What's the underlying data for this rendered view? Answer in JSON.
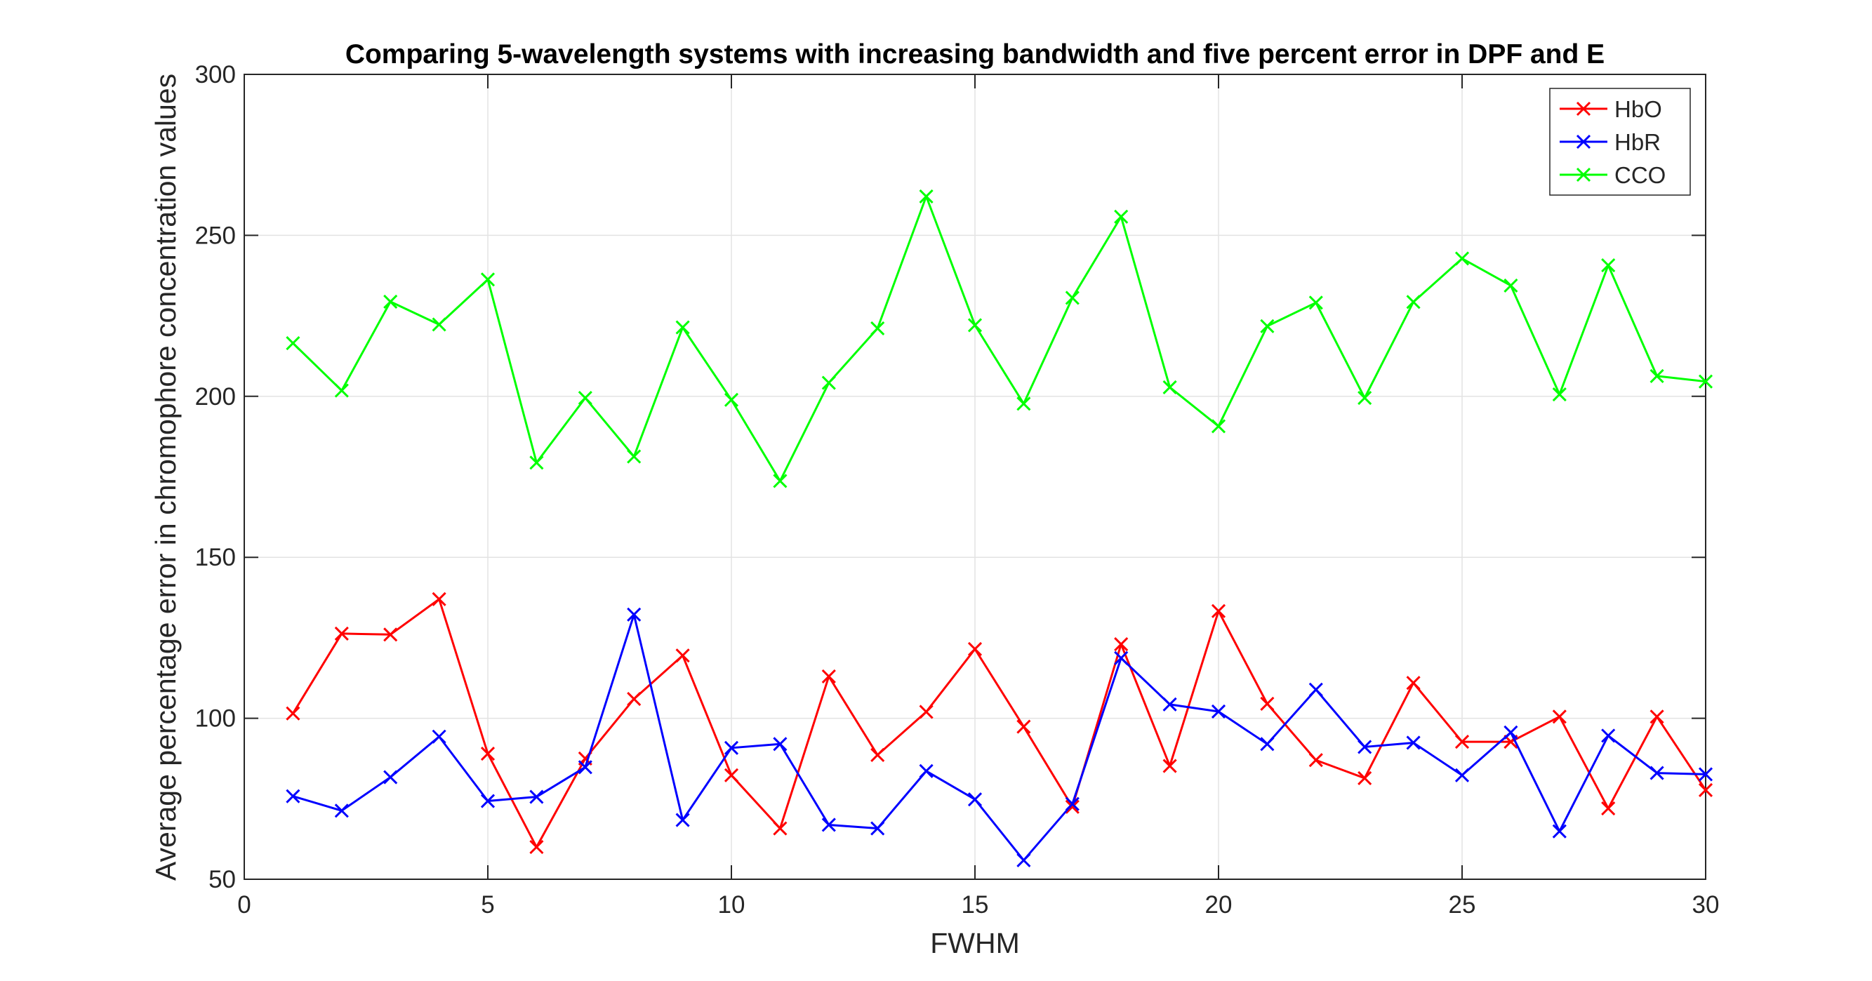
{
  "chart_data": {
    "type": "line",
    "title": "Comparing 5-wavelength systems with increasing bandwidth and five percent error in DPF and E",
    "xlabel": "FWHM",
    "ylabel": "Average percentage error in chromophore concentration values",
    "xlim": [
      0,
      30
    ],
    "ylim": [
      50,
      300
    ],
    "xticks": [
      0,
      5,
      10,
      15,
      20,
      25,
      30
    ],
    "yticks": [
      50,
      100,
      150,
      200,
      250,
      300
    ],
    "grid": true,
    "legend_position": "top-right",
    "marker": "x",
    "x": [
      1,
      2,
      3,
      4,
      5,
      6,
      7,
      8,
      9,
      10,
      11,
      12,
      13,
      14,
      15,
      16,
      17,
      18,
      19,
      20,
      21,
      22,
      23,
      24,
      25,
      26,
      27,
      28,
      29,
      30
    ],
    "series": [
      {
        "name": "HbO",
        "color": "#ff0000",
        "values": [
          101.5,
          126.3,
          126,
          137,
          89,
          60,
          87.5,
          106,
          119.5,
          82.3,
          65.8,
          113,
          88.6,
          102,
          121.5,
          97.4,
          72.5,
          123,
          85.2,
          133.3,
          104.5,
          87,
          81.4,
          111,
          92.7,
          92.7,
          100.5,
          72,
          100.5,
          77.7
        ]
      },
      {
        "name": "HbR",
        "color": "#0000ff",
        "values": [
          75.8,
          71.3,
          81.7,
          94.3,
          74.3,
          75.6,
          84.8,
          132.2,
          68.4,
          90.8,
          92,
          66.9,
          65.8,
          83.6,
          74.8,
          55.9,
          73.4,
          118.7,
          104.3,
          102.1,
          92,
          108.9,
          91.1,
          92.4,
          82.3,
          95.6,
          64.9,
          94.6,
          83,
          82.6
        ]
      },
      {
        "name": "CCO",
        "color": "#00ff00",
        "values": [
          216.5,
          201.8,
          229.4,
          222.3,
          236.3,
          179.4,
          199.5,
          181.3,
          221.4,
          198.9,
          173.7,
          204.2,
          221.1,
          262.1,
          222.1,
          197.7,
          230.6,
          255.8,
          202.8,
          190.7,
          221.8,
          229.1,
          199.5,
          229.3,
          242.8,
          234.4,
          200.6,
          240.7,
          206.3,
          204.6
        ]
      }
    ]
  }
}
